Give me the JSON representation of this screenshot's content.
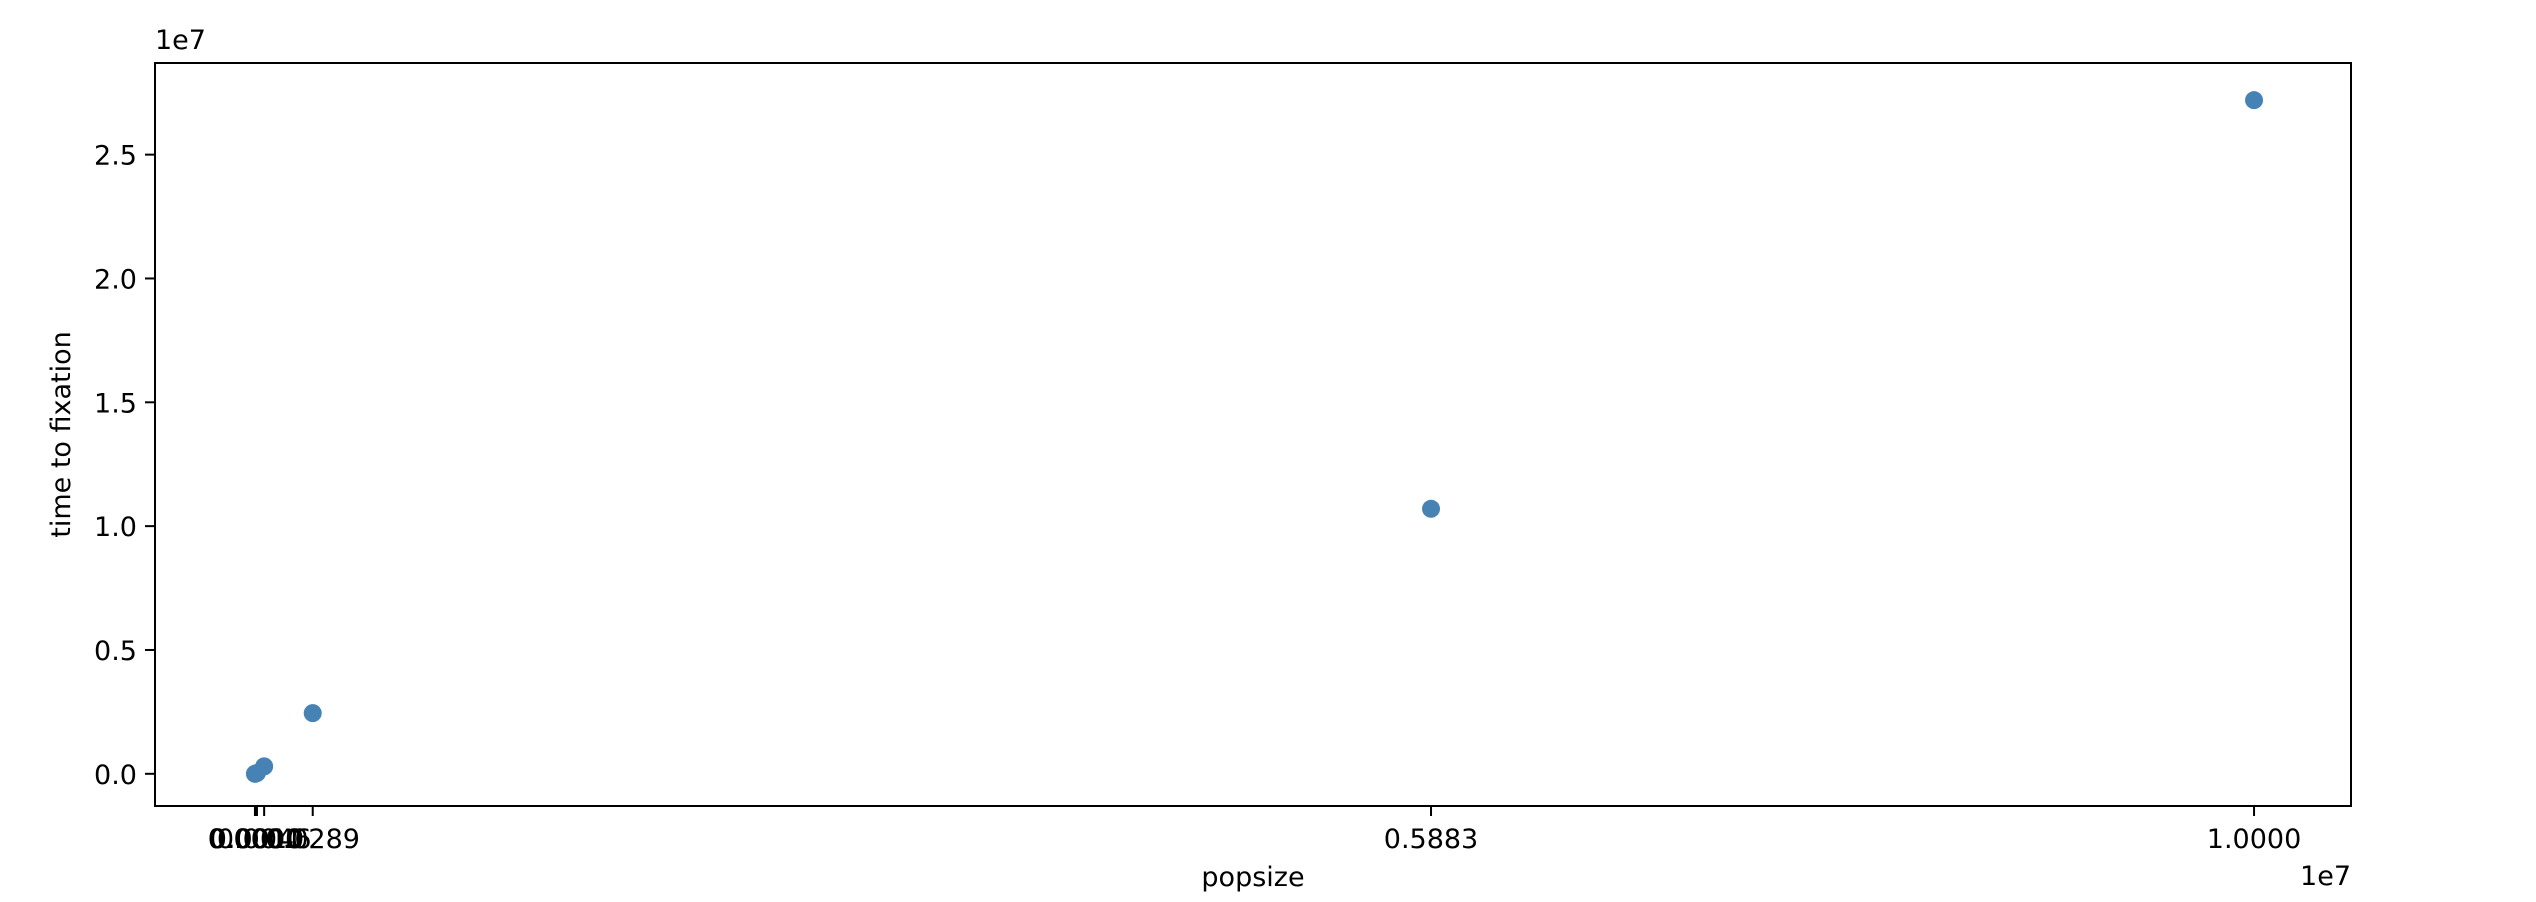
{
  "chart_data": {
    "type": "scatter",
    "title": "",
    "xlabel": "popsize",
    "ylabel": "time to fixation",
    "x_offset_label": "1e7",
    "y_offset_label": "1e7",
    "xlim": [
      -0.05,
      1.0485
    ],
    "ylim": [
      -0.13,
      2.87
    ],
    "xticks": [
      {
        "value": 0.0,
        "label": "0.0000"
      },
      {
        "value": 0.0001,
        "label": "0.0001"
      },
      {
        "value": 0.001,
        "label": "0.0010"
      },
      {
        "value": 0.0046,
        "label": "0.0046"
      },
      {
        "value": 0.0289,
        "label": "0.0289"
      },
      {
        "value": 0.5883,
        "label": "0.5883"
      },
      {
        "value": 1.0,
        "label": "1.0000"
      }
    ],
    "yticks": [
      {
        "value": 0.0,
        "label": "0.0"
      },
      {
        "value": 0.5,
        "label": "0.5"
      },
      {
        "value": 1.0,
        "label": "1.0"
      },
      {
        "value": 1.5,
        "label": "1.5"
      },
      {
        "value": 2.0,
        "label": "2.0"
      },
      {
        "value": 2.5,
        "label": "2.5"
      }
    ],
    "points": [
      {
        "x": 0.0,
        "y": 0.0
      },
      {
        "x": 0.0001,
        "y": 0.0003
      },
      {
        "x": 0.001,
        "y": 0.003
      },
      {
        "x": 0.0046,
        "y": 0.03
      },
      {
        "x": 0.0289,
        "y": 0.245
      },
      {
        "x": 0.5883,
        "y": 1.07
      },
      {
        "x": 1.0,
        "y": 2.72
      }
    ],
    "marker_color": "#4682b4",
    "grid": false,
    "legend": "none"
  }
}
